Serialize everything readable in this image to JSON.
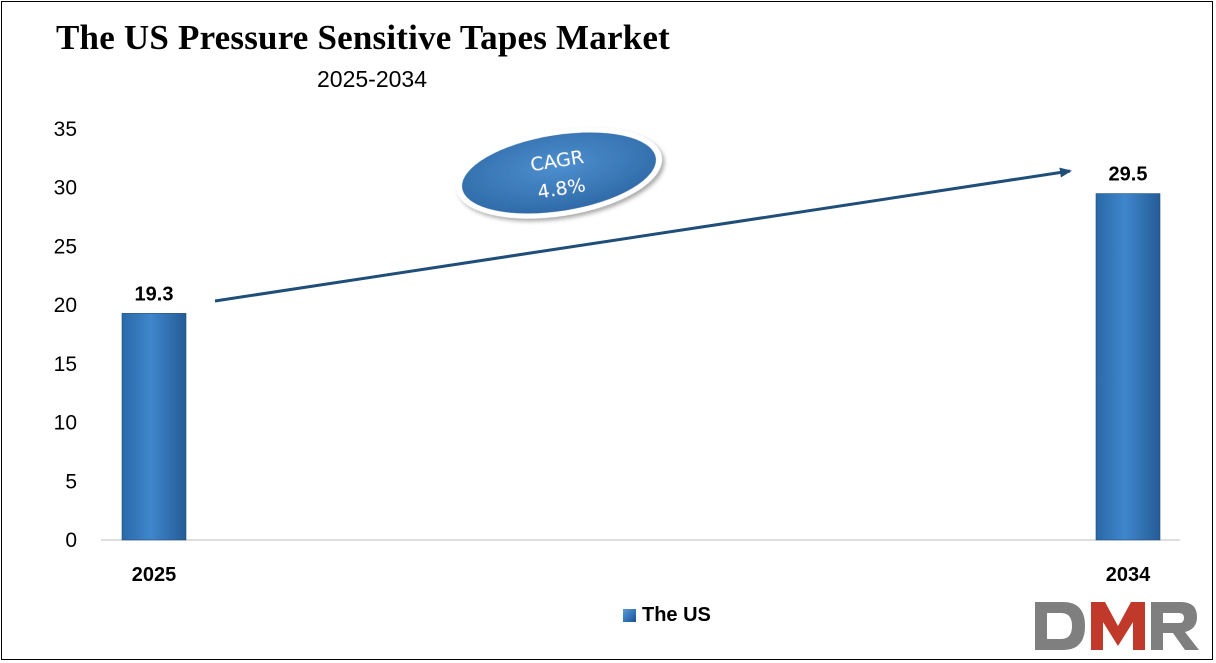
{
  "chart_data": {
    "type": "bar",
    "title": "The US Pressure Sensitive Tapes Market",
    "subtitle": "2025-2034",
    "categories": [
      "2025",
      "2034"
    ],
    "series": [
      {
        "name": "The US",
        "values": [
          19.3,
          29.5
        ]
      }
    ],
    "data_labels": [
      "19.3",
      "29.5"
    ],
    "ylim": [
      0,
      35
    ],
    "yticks": [
      0,
      5,
      10,
      15,
      20,
      25,
      30,
      35
    ],
    "grid": false,
    "legend_position": "bottom",
    "annotation": {
      "line1": "CAGR",
      "line2": "4.8%"
    },
    "colors": {
      "bar": "#2e75b6",
      "arrow": "#1f4e79",
      "ellipse": "#3a7dc0"
    }
  },
  "logo": {
    "text": "DMR",
    "colors": [
      "#7f7f7f",
      "#c0392b"
    ]
  }
}
